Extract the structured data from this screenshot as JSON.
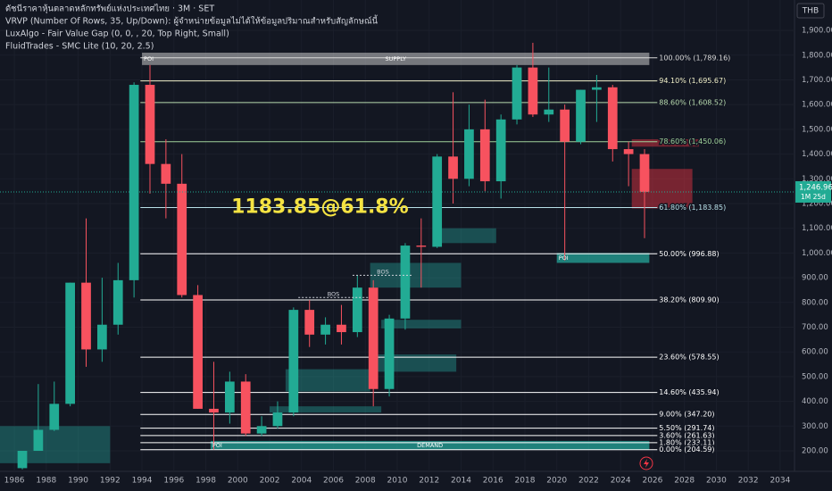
{
  "chart_data": {
    "type": "candlestick",
    "legend_lines": [
      "ดัชนีราคาหุ้นตลาดหลักทรัพย์แห่งประเทศไทย · 3M · SET",
      "VRVP (Number Of Rows, 35, Up/Down): ผู้จำหน่ายข้อมูลไม่ได้ให้ข้อมูลปริมาณสำหรับสัญลักษณ์นี้",
      "LuxAlgo - Fair Value Gap (0, 0, , 20, Top Right, Small)",
      "FluidTrades - SMC Lite  (10, 20, 2.5)"
    ],
    "currency": "THB",
    "xlim": [
      1985.1,
      2034.9
    ],
    "ylim": [
      117,
      2023
    ],
    "xticks": [
      1986,
      1988,
      1990,
      1992,
      1994,
      1996,
      1998,
      2000,
      2002,
      2004,
      2006,
      2008,
      2010,
      2012,
      2014,
      2016,
      2018,
      2020,
      2022,
      2024,
      2026,
      2028,
      2030,
      2032,
      2034
    ],
    "yticks": [
      {
        "value": 200,
        "label": "200.00"
      },
      {
        "value": 300,
        "label": "300.00"
      },
      {
        "value": 400,
        "label": "400.00"
      },
      {
        "value": 500,
        "label": "500.00"
      },
      {
        "value": 600,
        "label": "600.00"
      },
      {
        "value": 700,
        "label": "700.00"
      },
      {
        "value": 800,
        "label": "800.00"
      },
      {
        "value": 900,
        "label": "900.00"
      },
      {
        "value": 1000,
        "label": "1,000.00"
      },
      {
        "value": 1100,
        "label": "1,100.00"
      },
      {
        "value": 1200,
        "label": "1,200.00"
      },
      {
        "value": 1300,
        "label": "1,300.00"
      },
      {
        "value": 1400,
        "label": "1,400.00"
      },
      {
        "value": 1500,
        "label": "1,500.00"
      },
      {
        "value": 1600,
        "label": "1,600.00"
      },
      {
        "value": 1700,
        "label": "1,700.00"
      },
      {
        "value": 1800,
        "label": "1,800.00"
      },
      {
        "value": 1900,
        "label": "1,900.00"
      }
    ],
    "up_color": "#22ab94",
    "down_color": "#f7525f",
    "x": [
      1986,
      1987,
      1988,
      1989,
      1990,
      1991,
      1992,
      1993,
      1994,
      1995,
      1996,
      1997,
      1998,
      1999,
      2000,
      2001,
      2002,
      2003,
      2004,
      2005,
      2006,
      2007,
      2008,
      2009,
      2010,
      2011,
      2012,
      2013,
      2014,
      2015,
      2016,
      2017,
      2018,
      2019,
      2020,
      2021,
      2022,
      2023,
      2024,
      2025
    ],
    "open": [
      130,
      200,
      285,
      390,
      880,
      610,
      710,
      890,
      1680,
      1360,
      1280,
      830,
      370,
      355,
      480,
      270,
      300,
      355,
      770,
      670,
      710,
      680,
      860,
      450,
      735,
      1030,
      1025,
      1390,
      1300,
      1500,
      1290,
      1540,
      1750,
      1560,
      1580,
      1450,
      1660,
      1670,
      1420,
      1400
    ],
    "high": [
      200,
      470,
      480,
      880,
      1140,
      900,
      960,
      1690,
      1760,
      1460,
      1400,
      870,
      560,
      520,
      510,
      340,
      400,
      780,
      810,
      740,
      790,
      910,
      890,
      750,
      1040,
      1140,
      1400,
      1650,
      1600,
      1620,
      1560,
      1760,
      1850,
      1750,
      1600,
      1660,
      1720,
      1680,
      1450,
      1420
    ],
    "low": [
      125,
      200,
      280,
      380,
      540,
      560,
      670,
      820,
      1240,
      1140,
      820,
      370,
      205,
      310,
      260,
      260,
      290,
      340,
      620,
      630,
      630,
      660,
      380,
      420,
      690,
      860,
      1020,
      1200,
      1270,
      1250,
      1220,
      1520,
      1550,
      1530,
      970,
      1440,
      1530,
      1370,
      1270,
      1060
    ],
    "close": [
      200,
      285,
      390,
      880,
      610,
      710,
      890,
      1680,
      1360,
      1280,
      830,
      370,
      355,
      480,
      270,
      300,
      355,
      770,
      670,
      710,
      680,
      860,
      450,
      735,
      1030,
      1025,
      1390,
      1300,
      1500,
      1290,
      1540,
      1750,
      1560,
      1580,
      1450,
      1660,
      1670,
      1420,
      1400,
      1247
    ],
    "last": {
      "value": 1246.96,
      "value_label": "1,246.96",
      "countdown": "1M 25d",
      "color": "#22ab94"
    },
    "fib_range": [
      1993.9,
      2026.3
    ],
    "fib_levels": [
      {
        "value": 1789.16,
        "label": "100.00% (1,789.16)",
        "color": "#d9d9d9"
      },
      {
        "value": 1695.67,
        "label": "94.10% (1,695.67)",
        "color": "#f0efc8"
      },
      {
        "value": 1608.52,
        "label": "88.60% (1,608.52)",
        "color": "#b9dcb0"
      },
      {
        "value": 1450.06,
        "label": "78.60% (1,450.06)",
        "color": "#9fd19a"
      },
      {
        "value": 1183.85,
        "label": "61.80% (1,183.85)",
        "color": "#b8e0e8"
      },
      {
        "value": 996.88,
        "label": "50.00% (996.88)",
        "color": "#ffffff"
      },
      {
        "value": 809.9,
        "label": "38.20% (809.90)",
        "color": "#ffffff"
      },
      {
        "value": 578.55,
        "label": "23.60% (578.55)",
        "color": "#ffffff"
      },
      {
        "value": 435.94,
        "label": "14.60% (435.94)",
        "color": "#ffffff"
      },
      {
        "value": 347.2,
        "label": "9.00% (347.20)",
        "color": "#ffffff"
      },
      {
        "value": 291.74,
        "label": "5.50% (291.74)",
        "color": "#ffffff"
      },
      {
        "value": 261.63,
        "label": "3.60% (261.63)",
        "color": "#ffffff"
      },
      {
        "value": 233.11,
        "label": "1.80% (233.11)",
        "color": "#ffffff"
      },
      {
        "value": 204.59,
        "label": "0.00% (204.59)",
        "color": "#ffffff"
      }
    ],
    "zones": [
      {
        "x": [
          1994,
          2025.8
        ],
        "y": [
          1760,
          1810
        ],
        "color": "rgba(200,200,200,0.55)",
        "labels": [
          "POI",
          "SUPPLY"
        ]
      },
      {
        "x": [
          2020,
          2025.8
        ],
        "y": [
          960,
          1000
        ],
        "color": "rgba(38,166,154,0.75)",
        "labels": [
          "POI"
        ]
      },
      {
        "x": [
          1998.3,
          2025.8
        ],
        "y": [
          205,
          240
        ],
        "color": "rgba(38,166,154,0.75)",
        "labels": [
          "POI",
          "DEMAND"
        ]
      },
      {
        "x": [
          2024.7,
          2028.9
        ],
        "y": [
          1430,
          1460
        ],
        "color": "rgba(242,54,69,0.45)"
      },
      {
        "x": [
          2024.7,
          2028.5
        ],
        "y": [
          1180,
          1340
        ],
        "color": "rgba(242,54,69,0.45)"
      },
      {
        "x": [
          2012.3,
          2016.2
        ],
        "y": [
          1040,
          1100
        ],
        "color": "rgba(38,166,154,0.4)"
      },
      {
        "x": [
          2008.3,
          2014
        ],
        "y": [
          860,
          960
        ],
        "color": "rgba(38,166,154,0.4)"
      },
      {
        "x": [
          2009,
          2014
        ],
        "y": [
          695,
          730
        ],
        "color": "rgba(38,166,154,0.4)"
      },
      {
        "x": [
          2008.3,
          2013.7
        ],
        "y": [
          520,
          590
        ],
        "color": "rgba(38,166,154,0.4)"
      },
      {
        "x": [
          2003,
          2008.3
        ],
        "y": [
          440,
          530
        ],
        "color": "rgba(38,166,154,0.4)"
      },
      {
        "x": [
          2002,
          2009
        ],
        "y": [
          355,
          380
        ],
        "color": "rgba(38,166,154,0.4)"
      },
      {
        "x": [
          1985.1,
          1992
        ],
        "y": [
          150,
          300
        ],
        "color": "rgba(38,166,154,0.4)"
      }
    ],
    "bos": [
      {
        "label": "BOS",
        "x": [
          2003.8,
          2008.2
        ],
        "y": 820
      },
      {
        "label": "BOS",
        "x": [
          2007.2,
          2011
        ],
        "y": 910
      }
    ],
    "annotation": {
      "text": "1183.85@61.8%",
      "x": 1999.6,
      "y": 1183.85,
      "color": "#f5e342"
    }
  }
}
